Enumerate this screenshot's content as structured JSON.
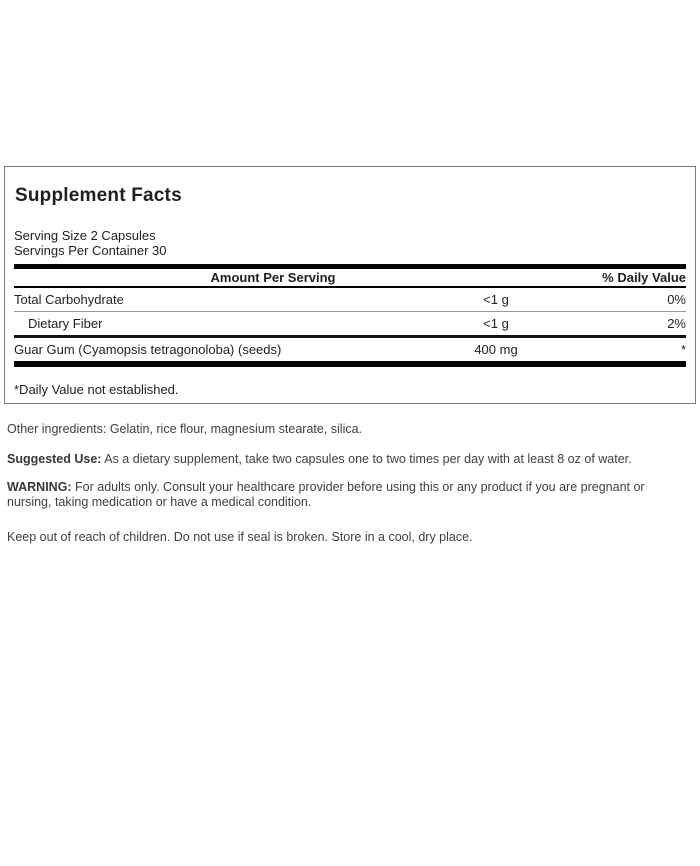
{
  "panel": {
    "title": "Supplement Facts",
    "serving_size": "Serving Size 2 Capsules",
    "servings_per_container": "Servings Per Container 30",
    "header": {
      "amount_label": "Amount Per Serving",
      "dv_label": "% Daily Value"
    },
    "rows": [
      {
        "name": "Total Carbohydrate",
        "amount": "<1 g",
        "dv": "0%"
      },
      {
        "name": "Dietary Fiber",
        "amount": "<1 g",
        "dv": "2%"
      },
      {
        "name": "Guar Gum (Cyamopsis tetragonoloba) (seeds)",
        "amount": "400 mg",
        "dv": "*"
      }
    ],
    "footnote": "*Daily Value not established."
  },
  "info": {
    "other_ingredients": "Other ingredients: Gelatin, rice flour, magnesium stearate, silica.",
    "suggested_use_label": "Suggested Use:",
    "suggested_use_text": " As a dietary supplement, take two capsules one to two times per day with at least 8 oz of water.",
    "warning_label": "WARNING:",
    "warning_text": " For adults only. Consult your healthcare provider before using this or any product if you are pregnant or nursing, taking medication or have a medical condition.",
    "storage": "Keep out of reach of children. Do not use if seal is broken. Store in a cool, dry place."
  },
  "colors": {
    "background": "#ffffff",
    "panel_border": "#7a7a7a",
    "divider_black": "#000000",
    "hairline_gray": "#9a9a9a",
    "panel_text": "#1f1f1f",
    "body_text": "#3f3f3f"
  }
}
